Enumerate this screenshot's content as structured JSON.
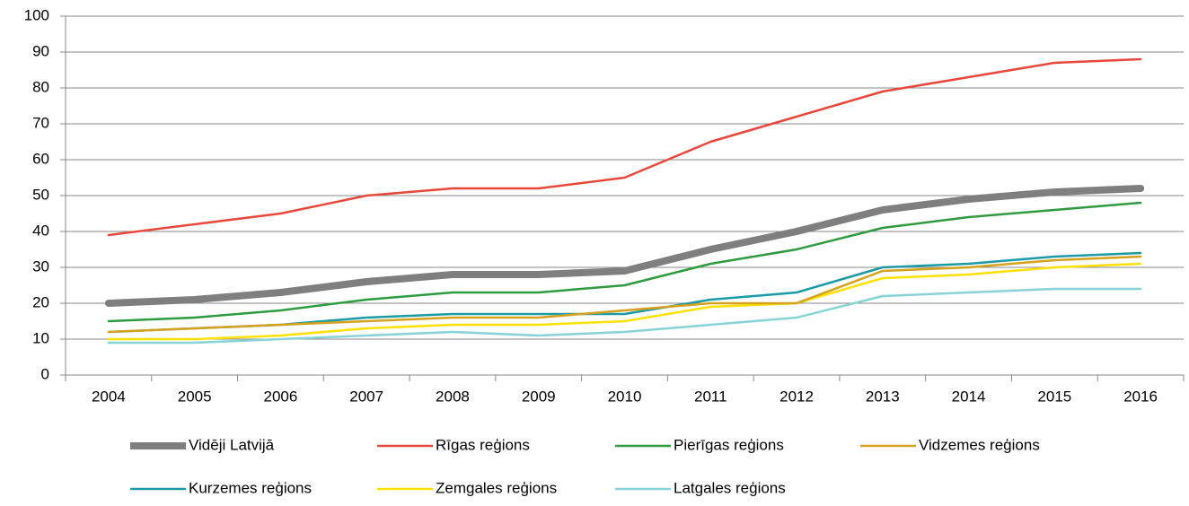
{
  "chart_data": {
    "type": "line",
    "categories": [
      "2004",
      "2005",
      "2006",
      "2007",
      "2008",
      "2009",
      "2010",
      "2011",
      "2012",
      "2013",
      "2014",
      "2015",
      "2016"
    ],
    "series": [
      {
        "name": "Vidēji Latvijā",
        "color": "#7f7f7f",
        "values": [
          20,
          21,
          23,
          26,
          28,
          28,
          29,
          35,
          40,
          46,
          49,
          51,
          52
        ]
      },
      {
        "name": "Rīgas reģions",
        "color": "#e8483c",
        "values": [
          39,
          42,
          45,
          50,
          52,
          52,
          55,
          65,
          72,
          79,
          83,
          87,
          88
        ]
      },
      {
        "name": "Pierīgas reģions",
        "color": "#2e9b3f",
        "values": [
          15,
          16,
          18,
          21,
          23,
          23,
          25,
          31,
          35,
          41,
          44,
          46,
          48
        ]
      },
      {
        "name": "Vidzemes reģions",
        "color": "#d6a21e",
        "values": [
          12,
          13,
          14,
          15,
          16,
          16,
          18,
          20,
          20,
          29,
          30,
          32,
          33
        ]
      },
      {
        "name": "Kurzemes reģions",
        "color": "#1a9ba6",
        "values": [
          12,
          13,
          14,
          16,
          17,
          17,
          17,
          21,
          23,
          30,
          31,
          33,
          34
        ]
      },
      {
        "name": "Zemgales reģions",
        "color": "#ffe100",
        "values": [
          10,
          10,
          11,
          13,
          14,
          14,
          15,
          19,
          20,
          27,
          28,
          30,
          31
        ]
      },
      {
        "name": "Latgales reģions",
        "color": "#86d3d8",
        "values": [
          9,
          9,
          10,
          11,
          12,
          11,
          12,
          14,
          16,
          22,
          23,
          24,
          24
        ]
      }
    ],
    "ylim": [
      0,
      100
    ],
    "yticks": [
      0,
      10,
      20,
      30,
      40,
      50,
      60,
      70,
      80,
      90,
      100
    ],
    "grid": true,
    "legend": "bottom"
  }
}
